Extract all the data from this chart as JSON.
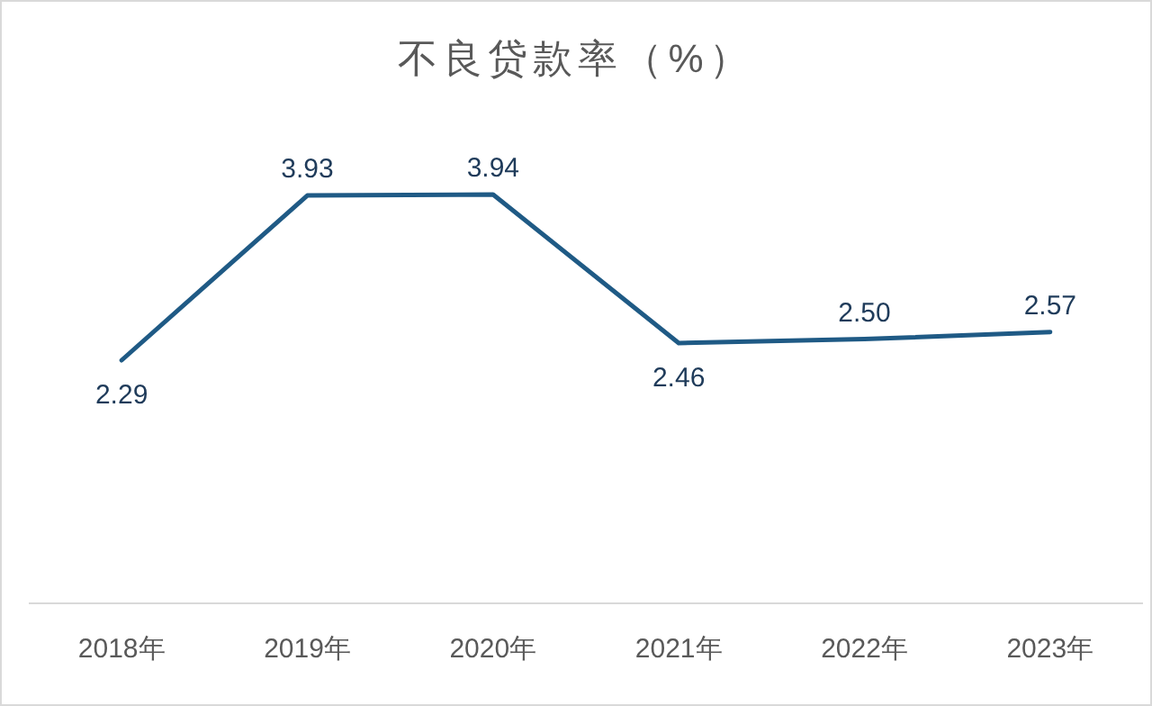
{
  "chart_data": {
    "type": "line",
    "title": "不良贷款率（%）",
    "categories": [
      "2018年",
      "2019年",
      "2020年",
      "2021年",
      "2022年",
      "2023年"
    ],
    "series": [
      {
        "color": "#1f5a85",
        "values": [
          2.29,
          3.93,
          3.94,
          2.46,
          2.5,
          2.57
        ],
        "value_labels": [
          "2.29",
          "3.93",
          "3.94",
          "2.46",
          "2.50",
          "2.57"
        ]
      }
    ],
    "marker": "none",
    "line_style": "solid"
  }
}
